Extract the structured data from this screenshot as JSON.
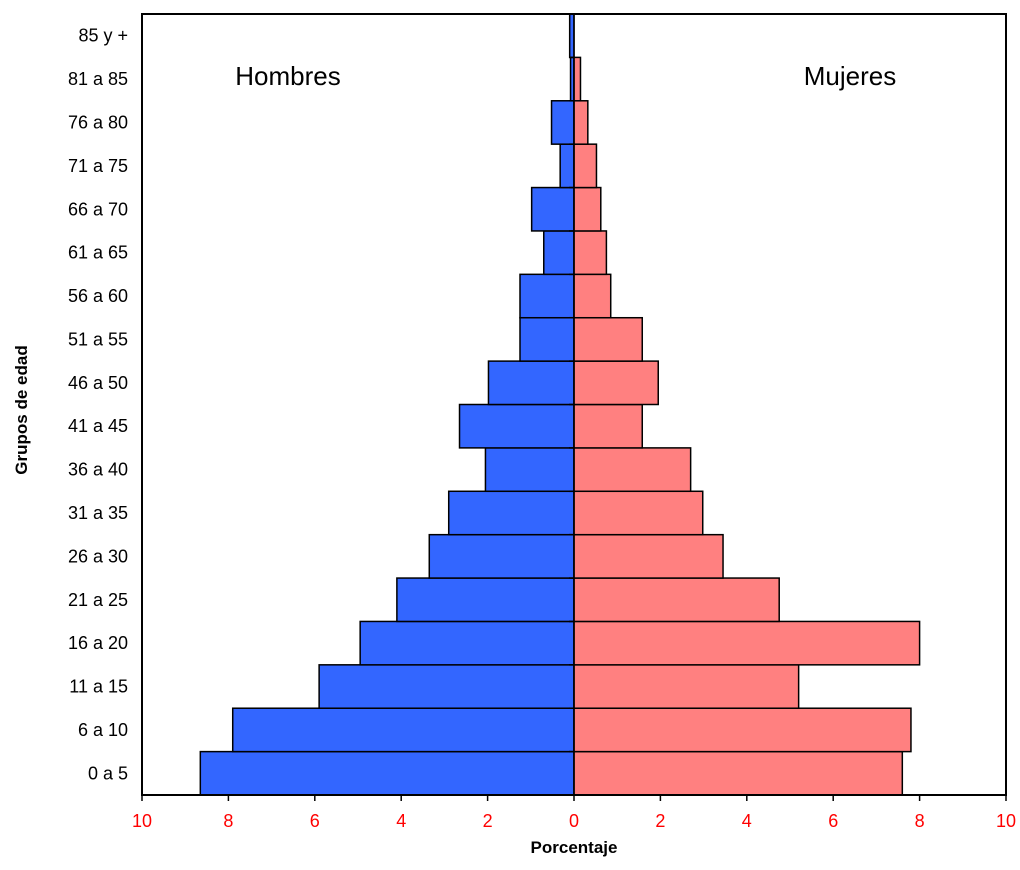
{
  "chart_data": {
    "type": "bar",
    "orientation": "horizontal",
    "subtype": "population-pyramid",
    "title": "",
    "xlabel": "Porcentaje",
    "ylabel": "Grupos de edad",
    "xlim": [
      -10,
      10
    ],
    "x_ticks": [
      -10,
      -8,
      -6,
      -4,
      -2,
      0,
      2,
      4,
      6,
      8,
      10
    ],
    "x_tick_labels": [
      "10",
      "8",
      "6",
      "4",
      "2",
      "0",
      "2",
      "4",
      "6",
      "8",
      "10"
    ],
    "categories": [
      "0 a 5",
      "6 a 10",
      "11 a 15",
      "16 a 20",
      "21 a 25",
      "26 a 30",
      "31 a 35",
      "36 a 40",
      "41 a 45",
      "46 a 50",
      "51 a 55",
      "56 a 60",
      "61 a 65",
      "66 a 70",
      "71 a 75",
      "76 a 80",
      "81 a 85",
      "85 y +"
    ],
    "series": [
      {
        "name": "Hombres",
        "color": "#3366FF",
        "values": [
          8.65,
          7.9,
          5.9,
          4.95,
          4.1,
          3.35,
          2.9,
          2.05,
          2.65,
          1.98,
          1.25,
          1.25,
          0.7,
          0.98,
          0.32,
          0.52,
          0.08,
          0.1
        ]
      },
      {
        "name": "Mujeres",
        "color": "#FF8080",
        "values": [
          7.6,
          7.8,
          5.2,
          8.0,
          4.75,
          3.45,
          2.98,
          2.7,
          1.58,
          1.95,
          1.58,
          0.85,
          0.75,
          0.62,
          0.52,
          0.32,
          0.15,
          0.0
        ]
      }
    ],
    "annotations": [
      "Hombres",
      "Mujeres"
    ],
    "grid": false,
    "legend": "none",
    "colors": {
      "tick_label_x": "#FF0000",
      "axis": "#000000",
      "bar_edge": "#000000"
    }
  }
}
